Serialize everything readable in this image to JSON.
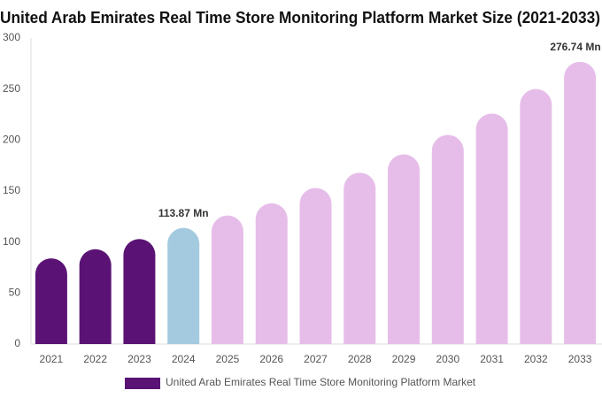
{
  "chart_data": {
    "type": "bar",
    "title": "United Arab Emirates Real Time Store Monitoring Platform Market Size (2021-2033)",
    "categories": [
      "2021",
      "2022",
      "2023",
      "2024",
      "2025",
      "2026",
      "2027",
      "2028",
      "2029",
      "2030",
      "2031",
      "2032",
      "2033"
    ],
    "series": [
      {
        "name": "United Arab Emirates Real Time Store Monitoring Platform Market",
        "color": "#5a1374",
        "values": [
          84,
          93,
          103,
          113.87,
          126,
          138,
          153,
          168,
          186,
          205,
          226,
          250,
          276.74
        ],
        "value_labels": [
          null,
          null,
          null,
          "113.87 Mn",
          null,
          null,
          null,
          null,
          null,
          null,
          null,
          null,
          "276.74 Mn"
        ],
        "colors": [
          "#5a1374",
          "#5a1374",
          "#5a1374",
          "#a4cadf",
          "#e6bde8",
          "#e6bde8",
          "#e6bde8",
          "#e6bde8",
          "#e6bde8",
          "#e6bde8",
          "#e6bde8",
          "#e6bde8",
          "#e6bde8"
        ]
      }
    ],
    "ylim": [
      0,
      300
    ],
    "yticks": [
      0,
      50,
      100,
      150,
      200,
      250,
      300
    ],
    "grid": false,
    "legend": "bottom"
  }
}
